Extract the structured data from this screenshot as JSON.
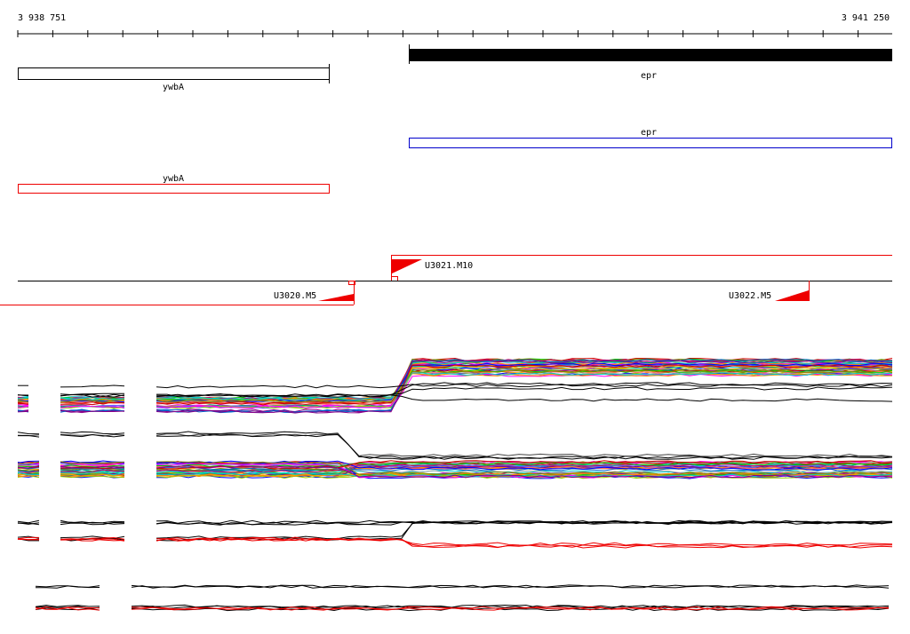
{
  "ruler": {
    "start": "3 938 751",
    "end": "3 941 250"
  },
  "genes": [
    {
      "label": "ywbA"
    },
    {
      "label": "epr"
    },
    {
      "label": "epr"
    },
    {
      "label": "ywbA"
    }
  ],
  "segments": [
    {
      "label": "U3021.M10"
    },
    {
      "label": "U3020.M5"
    },
    {
      "label": "U3022.M5"
    }
  ]
}
